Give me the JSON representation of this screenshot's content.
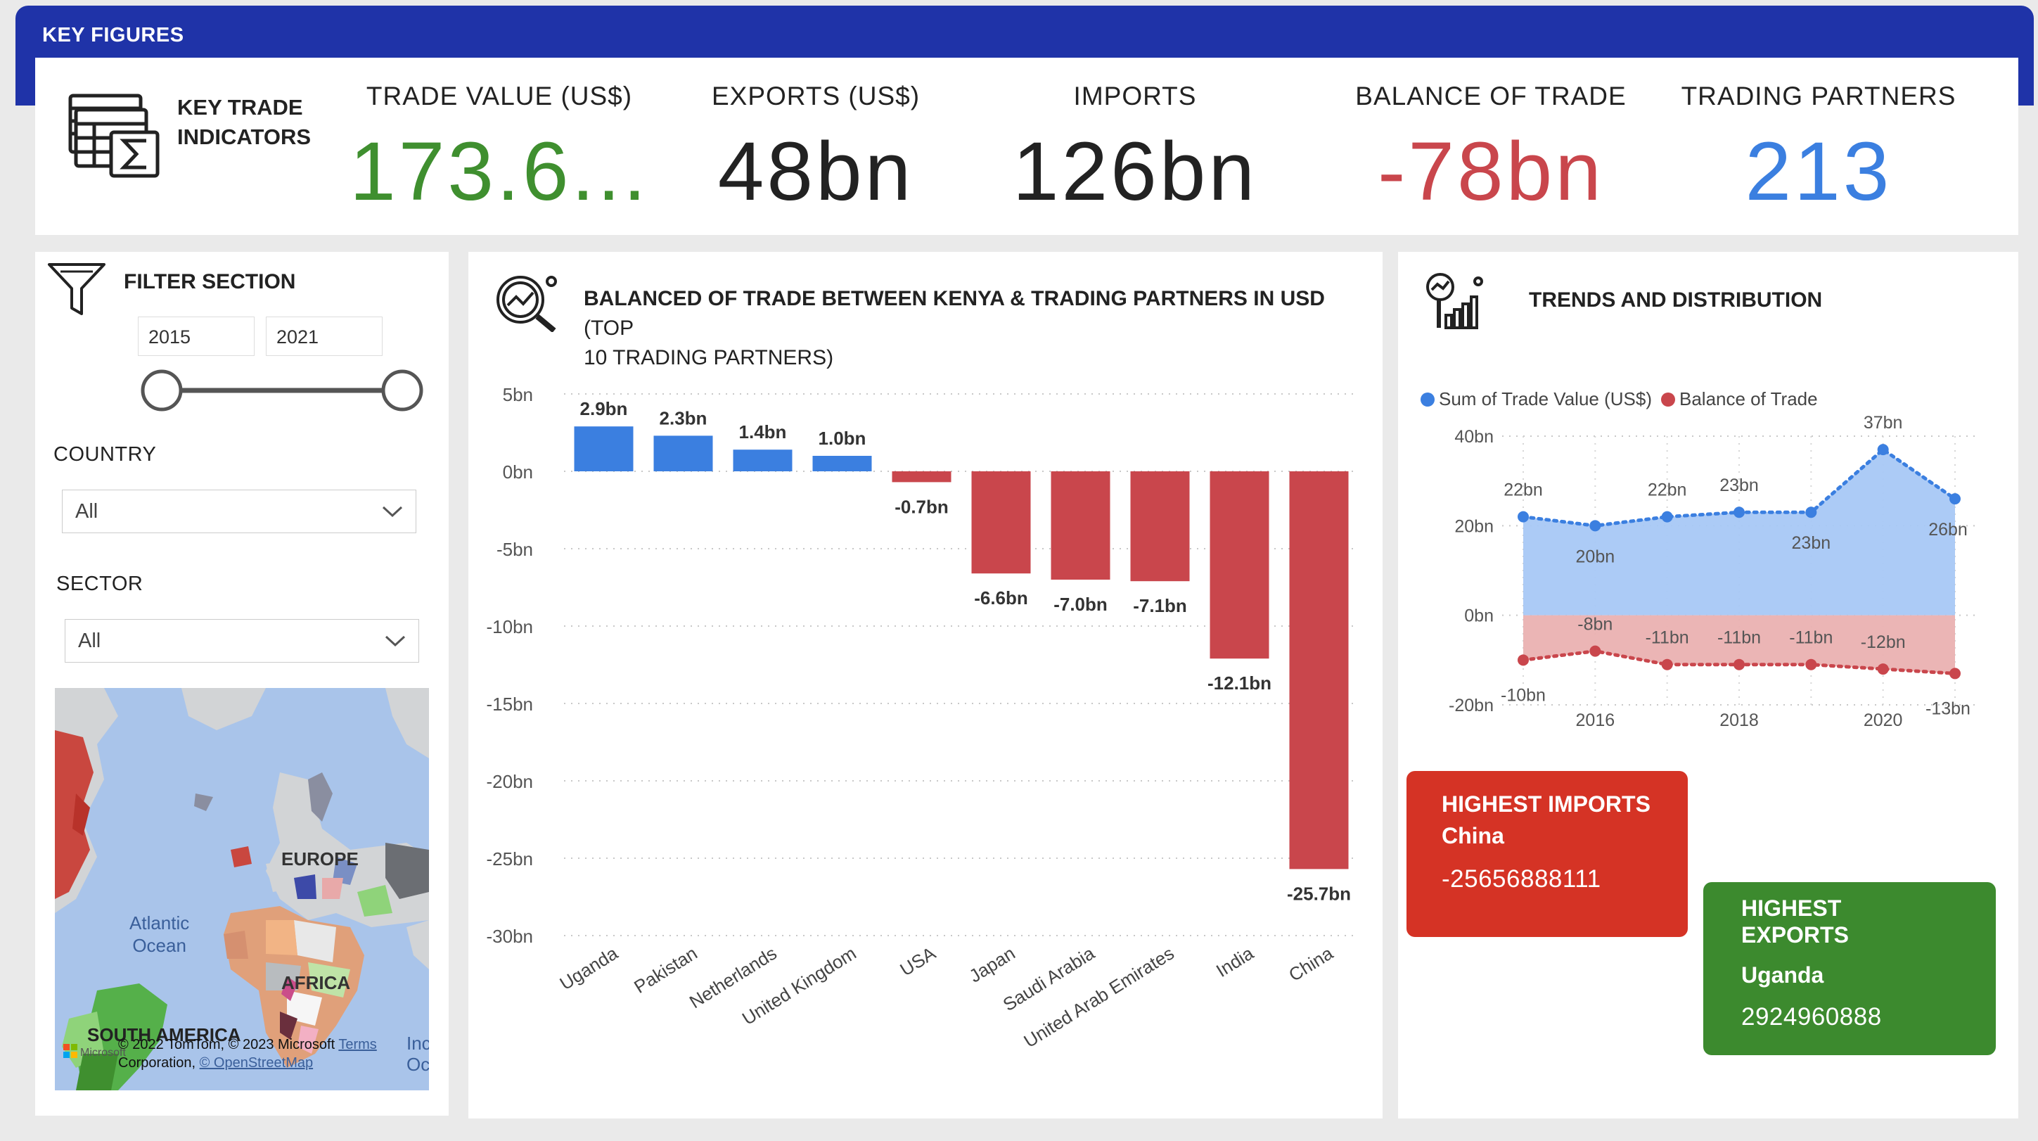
{
  "header": {
    "title": "KEY FIGURES"
  },
  "kpis": {
    "section_label": [
      "KEY TRADE",
      "INDICATORS"
    ],
    "items": [
      {
        "label": "TRADE VALUE (US$)",
        "value": "173.6...",
        "color": "#3f8f2f"
      },
      {
        "label": "EXPORTS (US$)",
        "value": "48bn",
        "color": "#222222"
      },
      {
        "label": "IMPORTS",
        "value": "126bn",
        "color": "#222222"
      },
      {
        "label": "BALANCE OF TRADE",
        "value": "-78bn",
        "color": "#c9464c"
      },
      {
        "label": "TRADING PARTNERS",
        "value": "213",
        "color": "#3b7fe0"
      }
    ]
  },
  "filter": {
    "title": "FILTER SECTION",
    "year_from": "2015",
    "year_to": "2021",
    "country_label": "COUNTRY",
    "country_value": "All",
    "sector_label": "SECTOR",
    "sector_value": "All"
  },
  "map": {
    "labels": {
      "europe": "EUROPE",
      "atlantic_1": "Atlantic",
      "atlantic_2": "Ocean",
      "africa": "AFRICA",
      "south_america": "SOUTH AMERICA",
      "indian_1": "Inc",
      "indian_2": "Oc"
    },
    "attribution": {
      "line1": "© 2022 TomTom, © 2023 Microsoft",
      "line2": "Corporation,",
      "osm": "© OpenStreetMap",
      "terms": "Terms",
      "brand": "Microsoft"
    }
  },
  "bar_chart_panel": {
    "title_bold": "BALANCED OF TRADE BETWEEN KENYA & TRADING PARTNERS IN USD",
    "title_rest_1": "(TOP",
    "title_rest_2": "10 TRADING PARTNERS)"
  },
  "trend_panel": {
    "title": "TRENDS AND DISTRIBUTION",
    "legend": [
      {
        "label": "Sum of Trade Value (US$)",
        "color": "#3b7fe0"
      },
      {
        "label": "Balance of Trade",
        "color": "#c9464c"
      }
    ]
  },
  "chart_data": [
    {
      "type": "bar",
      "categories": [
        "Uganda",
        "Pakistan",
        "Netherlands",
        "United Kingdom",
        "USA",
        "Japan",
        "Saudi Arabia",
        "United Arab Emirates",
        "India",
        "China"
      ],
      "values": [
        2.9,
        2.3,
        1.4,
        1.0,
        -0.7,
        -6.6,
        -7.0,
        -7.1,
        -12.1,
        -25.7
      ],
      "data_labels": [
        "2.9bn",
        "2.3bn",
        "1.4bn",
        "1.0bn",
        "-0.7bn",
        "-6.6bn",
        "-7.0bn",
        "-7.1bn",
        "-12.1bn",
        "-25.7bn"
      ],
      "yticks": [
        5,
        0,
        -5,
        -10,
        -15,
        -20,
        -25,
        -30
      ],
      "ytick_labels": [
        "5bn",
        "0bn",
        "-5bn",
        "-10bn",
        "-15bn",
        "-20bn",
        "-25bn",
        "-30bn"
      ],
      "ylim": [
        -30,
        5
      ],
      "positive_color": "#3b7fe0",
      "negative_color": "#c9464c",
      "grid": true
    },
    {
      "type": "area",
      "x": [
        2015,
        2016,
        2017,
        2018,
        2019,
        2020,
        2021
      ],
      "xticks": [
        2016,
        2018,
        2020
      ],
      "yticks": [
        40,
        20,
        0,
        -20
      ],
      "ytick_labels": [
        "40bn",
        "20bn",
        "0bn",
        "-20bn"
      ],
      "ylim": [
        -20,
        40
      ],
      "series": [
        {
          "name": "Sum of Trade Value (US$)",
          "values": [
            22,
            20,
            22,
            23,
            23,
            37,
            26
          ],
          "labels": [
            "22bn",
            "20bn",
            "22bn",
            "23bn",
            "23bn",
            "37bn",
            "26bn"
          ],
          "color": "#3b7fe0"
        },
        {
          "name": "Balance of Trade",
          "values": [
            -10,
            -8,
            -11,
            -11,
            -11,
            -12,
            -13
          ],
          "labels": [
            "-10bn",
            "-8bn",
            "-11bn",
            "-11bn",
            "-11bn",
            "-12bn",
            "-13bn"
          ],
          "color": "#c9464c"
        }
      ],
      "grid": true
    }
  ],
  "cards": {
    "imports": {
      "title": "HIGHEST IMPORTS",
      "name": "China",
      "value": "-25656888111",
      "color": "#d53325"
    },
    "exports": {
      "title_1": "HIGHEST",
      "title_2": "EXPORTS",
      "name": "Uganda",
      "value": "2924960888",
      "color": "#3c8a2e"
    }
  }
}
